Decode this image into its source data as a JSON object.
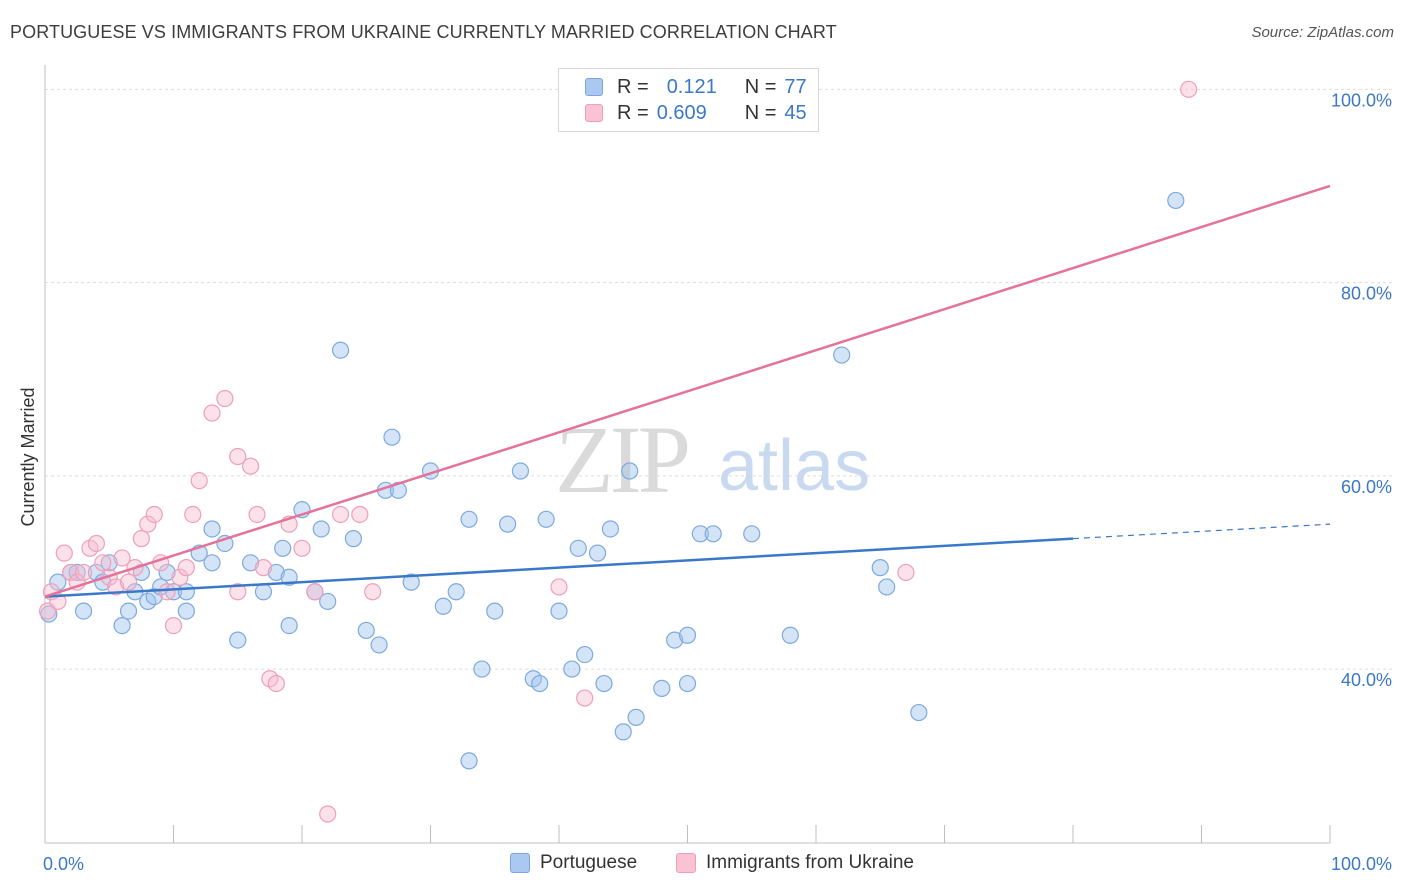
{
  "title": "PORTUGUESE VS IMMIGRANTS FROM UKRAINE CURRENTLY MARRIED CORRELATION CHART",
  "source": "Source: ZipAtlas.com",
  "watermark": {
    "zip": "ZIP",
    "atlas": "atlas"
  },
  "legend": {
    "r_label": "R =",
    "n_label": "N =",
    "rows": [
      {
        "r": "0.121",
        "n": "77",
        "color": "#aac8f0",
        "border": "#7ba6dc"
      },
      {
        "r": "0.609",
        "n": "45",
        "color": "#f9c3d3",
        "border": "#ef9fb8"
      }
    ]
  },
  "chart_data": {
    "type": "scatter",
    "title": "PORTUGUESE VS IMMIGRANTS FROM UKRAINE CURRENTLY MARRIED CORRELATION CHART",
    "xlabel": "",
    "ylabel": "Currently Married",
    "xlim": [
      0,
      100
    ],
    "ylim": [
      22,
      102
    ],
    "x_tick_labels": [
      "0.0%",
      "100.0%"
    ],
    "y_ticks": [
      40,
      60,
      80,
      100
    ],
    "y_tick_labels": [
      "40.0%",
      "60.0%",
      "80.0%",
      "100.0%"
    ],
    "grid": true,
    "legend_position": "bottom",
    "series": [
      {
        "name": "Portuguese",
        "color": "#3a78c9",
        "fill": "rgba(160,195,238,0.45)",
        "stroke": "#7ea9de",
        "points": [
          [
            0.3,
            45.7
          ],
          [
            1,
            49
          ],
          [
            2,
            50
          ],
          [
            2.5,
            50
          ],
          [
            3,
            46
          ],
          [
            4,
            50
          ],
          [
            4.5,
            49
          ],
          [
            5,
            51
          ],
          [
            6,
            44.5
          ],
          [
            6.5,
            46
          ],
          [
            7,
            48
          ],
          [
            7.5,
            50
          ],
          [
            8,
            47
          ],
          [
            8.5,
            47.5
          ],
          [
            9,
            48.5
          ],
          [
            9.5,
            50
          ],
          [
            10,
            48
          ],
          [
            11,
            46
          ],
          [
            11,
            48
          ],
          [
            12,
            52
          ],
          [
            13,
            54.5
          ],
          [
            13,
            51
          ],
          [
            14,
            53
          ],
          [
            15,
            43
          ],
          [
            16,
            51
          ],
          [
            17,
            48
          ],
          [
            18,
            50
          ],
          [
            18.5,
            52.5
          ],
          [
            19,
            44.5
          ],
          [
            19,
            49.5
          ],
          [
            20,
            56.5
          ],
          [
            21,
            48
          ],
          [
            21.5,
            54.5
          ],
          [
            22,
            47
          ],
          [
            23,
            73
          ],
          [
            24,
            53.5
          ],
          [
            25,
            44
          ],
          [
            26,
            42.5
          ],
          [
            26.5,
            58.5
          ],
          [
            27,
            64
          ],
          [
            27.5,
            58.5
          ],
          [
            28.5,
            49
          ],
          [
            30,
            60.5
          ],
          [
            31,
            46.5
          ],
          [
            32,
            48
          ],
          [
            33,
            30.5
          ],
          [
            33,
            55.5
          ],
          [
            34,
            40
          ],
          [
            35,
            46
          ],
          [
            36,
            55
          ],
          [
            37,
            60.5
          ],
          [
            38,
            39
          ],
          [
            38.5,
            38.5
          ],
          [
            39,
            55.5
          ],
          [
            40,
            46
          ],
          [
            41,
            40
          ],
          [
            41.5,
            52.5
          ],
          [
            42,
            41.5
          ],
          [
            43,
            52
          ],
          [
            43.5,
            38.5
          ],
          [
            44,
            54.5
          ],
          [
            45,
            33.5
          ],
          [
            45.5,
            60.5
          ],
          [
            46,
            35
          ],
          [
            48,
            38
          ],
          [
            49,
            43
          ],
          [
            50,
            43.5
          ],
          [
            50,
            38.5
          ],
          [
            51,
            54
          ],
          [
            52,
            54
          ],
          [
            55,
            54
          ],
          [
            58,
            43.5
          ],
          [
            62,
            72.5
          ],
          [
            65,
            50.5
          ],
          [
            65.5,
            48.5
          ],
          [
            68,
            35.5
          ],
          [
            88,
            88.5
          ]
        ]
      },
      {
        "name": "Immigrants from Ukraine",
        "color": "#e4729a",
        "fill": "rgba(246,188,206,0.45)",
        "stroke": "#ef9fb8",
        "points": [
          [
            0.2,
            46
          ],
          [
            0.5,
            48
          ],
          [
            1,
            47
          ],
          [
            1.5,
            52
          ],
          [
            2,
            50
          ],
          [
            2.5,
            49
          ],
          [
            3,
            50
          ],
          [
            3.5,
            52.5
          ],
          [
            4,
            53
          ],
          [
            4.5,
            51
          ],
          [
            5,
            49.5
          ],
          [
            5.5,
            48.5
          ],
          [
            6,
            51.5
          ],
          [
            6.5,
            49
          ],
          [
            7,
            50.5
          ],
          [
            7.5,
            53.5
          ],
          [
            8,
            55
          ],
          [
            8.5,
            56
          ],
          [
            9,
            51
          ],
          [
            9.5,
            48
          ],
          [
            10,
            44.5
          ],
          [
            10.5,
            49.5
          ],
          [
            11,
            50.5
          ],
          [
            11.5,
            56
          ],
          [
            12,
            59.5
          ],
          [
            13,
            66.5
          ],
          [
            14,
            68
          ],
          [
            15,
            48
          ],
          [
            15,
            62
          ],
          [
            16,
            61
          ],
          [
            16.5,
            56
          ],
          [
            17,
            50.5
          ],
          [
            17.5,
            39
          ],
          [
            18,
            38.5
          ],
          [
            19,
            55
          ],
          [
            20,
            52.5
          ],
          [
            21,
            48
          ],
          [
            22,
            25
          ],
          [
            23,
            56
          ],
          [
            24.5,
            56
          ],
          [
            25.5,
            48
          ],
          [
            40,
            48.5
          ],
          [
            42,
            37
          ],
          [
            67,
            50
          ],
          [
            89,
            100
          ]
        ]
      }
    ],
    "trendlines": [
      {
        "series": "Portuguese",
        "x": [
          0,
          80
        ],
        "y": [
          47.5,
          53.5
        ],
        "dashed_extension": {
          "x": [
            80,
            100
          ],
          "y": [
            53.5,
            55
          ]
        }
      },
      {
        "series": "Immigrants from Ukraine",
        "x": [
          0,
          100
        ],
        "y": [
          47.5,
          90
        ]
      }
    ]
  }
}
